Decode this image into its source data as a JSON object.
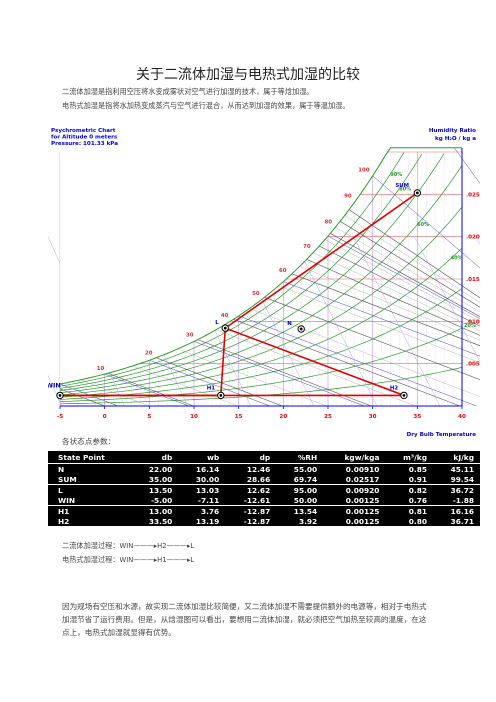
{
  "title": "关于二流体加湿与电热式加湿的比较",
  "intro": [
    "二流体加湿是指利用空压将水变成雾状对空气进行加湿的技术，属于等焓加湿。",
    "电热式加湿是指将水加热变成蒸汽与空气进行混合，从而达到加湿的效果，属于等温加湿。"
  ],
  "chart": {
    "header_left": [
      "Psychrometric Chart",
      "for Altitude 0 meters",
      "Pressure: 101.33 kPa"
    ],
    "header_right": [
      "Humidity Ratio",
      "kg H₂O / kg a"
    ],
    "x_axis_title": "Dry Bulb Temperature",
    "x_ticks": [
      "-5",
      "0",
      "5",
      "10",
      "15",
      "20",
      "25",
      "30",
      "35",
      "40"
    ],
    "y_ticks": [
      ".025",
      ".020",
      ".015",
      ".010",
      ".005"
    ],
    "enthalpy_labels": [
      "100",
      "90",
      "80",
      "70",
      "60",
      "50",
      "40",
      "30",
      "20",
      "10"
    ],
    "rh_labels": [
      "90%",
      "80%",
      "60%",
      "40%",
      "20%"
    ],
    "point_labels": {
      "WIN": "WIN",
      "H1": "H1",
      "H2": "H2",
      "L": "L",
      "N": "N",
      "SUM": "SUM"
    },
    "colors": {
      "frame": "#0000ff",
      "red_line": "#e00000",
      "rh": "#2a9d2a",
      "wb": "#4444cc",
      "enthalpy": "#cc3333"
    }
  },
  "state_heading": "各状态点参数：",
  "table": {
    "headers": [
      "State Point",
      "db",
      "wb",
      "dp",
      "%RH",
      "kgw/kga",
      "m³/kg",
      "kJ/kg"
    ],
    "groups": [
      [
        [
          "N",
          "22.00",
          "16.14",
          "12.46",
          "55.00",
          "0.00910",
          "0.85",
          "45.11"
        ],
        [
          "SUM",
          "35.00",
          "30.00",
          "28.66",
          "69.74",
          "0.02517",
          "0.91",
          "99.54"
        ]
      ],
      [
        [
          "L",
          "13.50",
          "13.03",
          "12.62",
          "95.00",
          "0.00920",
          "0.82",
          "36.72"
        ],
        [
          "WIN",
          "-5.00",
          "-7.11",
          "-12.61",
          "50.00",
          "0.00125",
          "0.76",
          "-1.88"
        ]
      ],
      [
        [
          "H1",
          "13.00",
          "3.76",
          "-12.87",
          "13.54",
          "0.00125",
          "0.81",
          "16.16"
        ],
        [
          "H2",
          "33.50",
          "13.19",
          "-12.87",
          "3.92",
          "0.00125",
          "0.80",
          "36.71"
        ]
      ]
    ]
  },
  "process": [
    {
      "label": "二流体加湿过程：",
      "seq": "WIN———▸H2———▸L"
    },
    {
      "label": "电热式加湿过程：",
      "seq": "WIN———▸H1———▸L"
    }
  ],
  "conclusion": "因为规场有空压和水源，故实现二流体加湿比较简便，又二流体加湿不需要提供额外的电源等，相对于电热式加湿节省了运行费用。但是，从焓湿图可以看出，要想用二流体加湿，就必须把空气加热至较高的温度，在这点上，电热式加湿就显得有优势。"
}
